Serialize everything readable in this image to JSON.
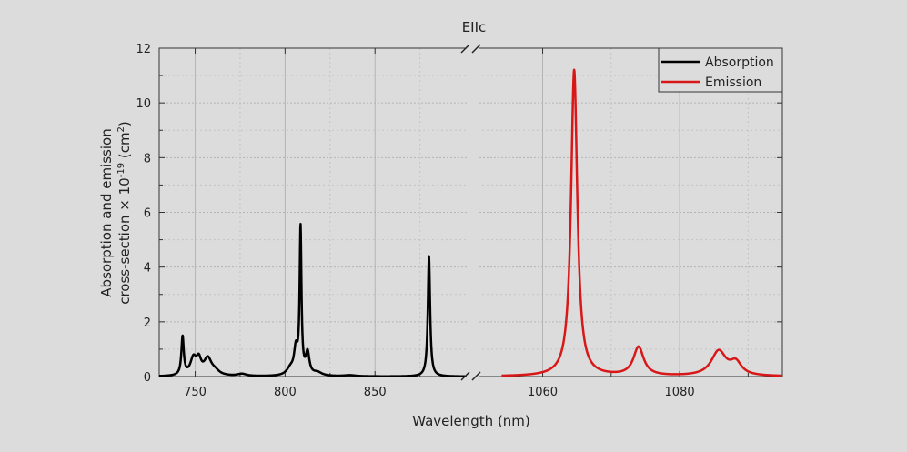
{
  "chart_data": {
    "type": "line",
    "title": "EIIc",
    "xlabel": "Wavelength (nm)",
    "ylabel_line1": "Absorption and emission",
    "ylabel_line2": "cross-section × 10",
    "ylabel_exp": "-19",
    "ylabel_unit": " (cm",
    "ylabel_unit_exp": "2",
    "ylabel_end": ")",
    "ylim": [
      0,
      12
    ],
    "yticks": [
      "0",
      "2",
      "4",
      "6",
      "8",
      "10",
      "12"
    ],
    "x_segments": [
      {
        "xlim": [
          730,
          903
        ],
        "ticks": [
          "750",
          "800",
          "850"
        ]
      },
      {
        "xlim": [
          1050.5,
          1095
        ],
        "ticks": [
          "1060",
          "1080"
        ]
      }
    ],
    "legend": {
      "position": "top-right",
      "entries": [
        "Absorption",
        "Emission"
      ]
    },
    "colors": {
      "Absorption": "#000000",
      "Emission": "#d81818"
    },
    "series": [
      {
        "name": "Absorption",
        "segment": 0,
        "range": [
          730,
          900
        ],
        "peaks": [
          [
            743,
            1.4,
            0.8
          ],
          [
            749,
            0.6,
            2
          ],
          [
            752,
            0.5,
            1.6
          ],
          [
            757,
            0.6,
            2.5
          ],
          [
            761,
            0.15,
            3
          ],
          [
            776,
            0.08,
            3
          ],
          [
            803,
            0.25,
            2.5
          ],
          [
            806,
            0.9,
            1.2
          ],
          [
            808.6,
            5.3,
            0.6
          ],
          [
            812.5,
            0.8,
            1.2
          ],
          [
            818,
            0.12,
            3
          ],
          [
            836,
            0.04,
            4
          ],
          [
            880,
            4.4,
            0.75
          ]
        ]
      },
      {
        "name": "Emission",
        "segment": 1,
        "range": [
          1054,
          1095
        ],
        "peaks": [
          [
            1064.6,
            11.2,
            0.55
          ],
          [
            1074,
            1.05,
            0.9
          ],
          [
            1085.7,
            0.9,
            1.3
          ],
          [
            1088.2,
            0.45,
            1.0
          ]
        ]
      }
    ]
  }
}
